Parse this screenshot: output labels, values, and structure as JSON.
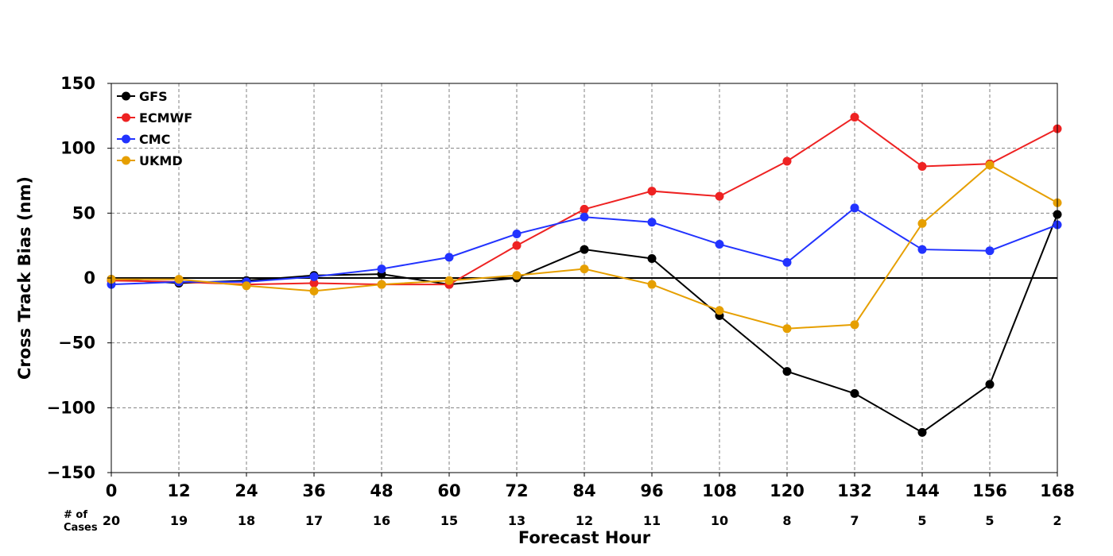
{
  "chart_data": {
    "type": "line",
    "title": "",
    "xlabel": "Forecast Hour",
    "ylabel": "Cross Track Bias (nm)",
    "x": [
      0,
      12,
      24,
      36,
      48,
      60,
      72,
      84,
      96,
      108,
      120,
      132,
      144,
      156,
      168
    ],
    "x_ticks": [
      "0",
      "12",
      "24",
      "36",
      "48",
      "60",
      "72",
      "84",
      "96",
      "108",
      "120",
      "132",
      "144",
      "156",
      "168"
    ],
    "xlim": [
      0,
      168
    ],
    "ylim": [
      -150,
      150
    ],
    "y_ticks": [
      "150",
      "100",
      "50",
      "0",
      "−50",
      "−100",
      "−150"
    ],
    "y_tick_values": [
      150,
      100,
      50,
      0,
      -50,
      -100,
      -150
    ],
    "grid": true,
    "legend_position": "top-left",
    "cases_label": "# of Cases",
    "cases": [
      "20",
      "19",
      "18",
      "17",
      "16",
      "15",
      "13",
      "12",
      "11",
      "10",
      "8",
      "7",
      "5",
      "5",
      "2"
    ],
    "series": [
      {
        "name": "GFS",
        "color": "#000000",
        "values": [
          -1,
          -4,
          -2,
          2,
          3,
          -5,
          0,
          22,
          15,
          -29,
          -72,
          -89,
          -119,
          -82,
          49
        ]
      },
      {
        "name": "ECMWF",
        "color": "#ee2222",
        "values": [
          -2,
          -3,
          -5,
          -4,
          -5,
          -5,
          25,
          53,
          67,
          63,
          90,
          124,
          86,
          88,
          115
        ]
      },
      {
        "name": "CMC",
        "color": "#2233ff",
        "values": [
          -5,
          -3,
          -3,
          1,
          7,
          16,
          34,
          47,
          43,
          26,
          12,
          54,
          22,
          21,
          41
        ]
      },
      {
        "name": "UKMD",
        "color": "#e69f00",
        "values": [
          -1,
          -1,
          -6,
          -10,
          -5,
          -2,
          2,
          7,
          -5,
          -25,
          -39,
          -36,
          42,
          87,
          58
        ]
      }
    ]
  }
}
